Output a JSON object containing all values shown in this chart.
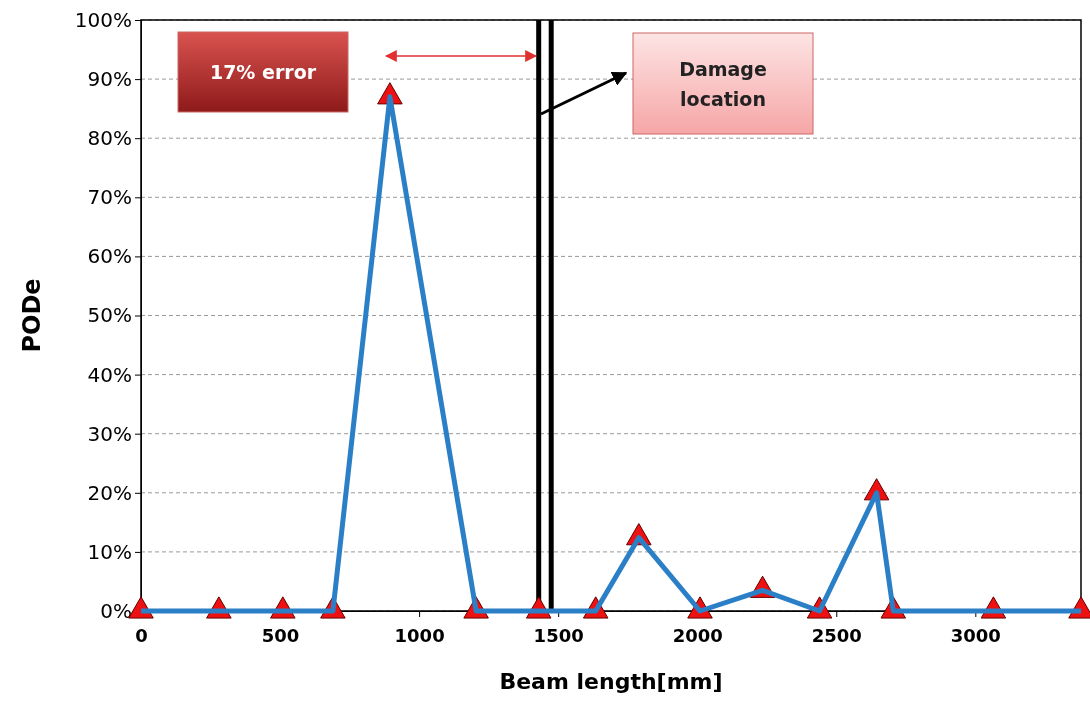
{
  "chart_data": {
    "type": "line",
    "xlabel": "Beam length[mm]",
    "ylabel": "PODe",
    "x": [
      0,
      280,
      510,
      690,
      895,
      1205,
      1430,
      1635,
      1790,
      2010,
      2235,
      2440,
      2645,
      2705,
      3065,
      3380
    ],
    "series": [
      {
        "color": "#2a7fc6",
        "values": [
          0,
          0,
          0,
          0,
          87,
          0,
          0,
          0,
          12.4,
          0,
          3.5,
          0,
          20,
          0,
          0,
          0
        ]
      }
    ],
    "marker": "triangle",
    "line_style": "solid",
    "grid": "y",
    "xlim": [
      0,
      3380
    ],
    "xticks": [
      0,
      500,
      1000,
      1500,
      2000,
      2500,
      3000
    ],
    "ylim": [
      0,
      100
    ],
    "yticks": [
      {
        "value": 0,
        "label": "0%"
      },
      {
        "value": 10,
        "label": "10%"
      },
      {
        "value": 20,
        "label": "20%"
      },
      {
        "value": 30,
        "label": "30%"
      },
      {
        "value": 40,
        "label": "40%"
      },
      {
        "value": 50,
        "label": "50%"
      },
      {
        "value": 60,
        "label": "60%"
      },
      {
        "value": 70,
        "label": "70%"
      },
      {
        "value": 80,
        "label": "80%"
      },
      {
        "value": 90,
        "label": "90%"
      },
      {
        "value": 100,
        "label": "100%"
      }
    ],
    "ref_lines": [
      {
        "axis": "x",
        "value": 1430,
        "color": "#000000"
      },
      {
        "axis": "x",
        "value": 1475,
        "color": "#000000"
      }
    ],
    "annotations": [
      "17% error",
      "Damage location"
    ]
  }
}
